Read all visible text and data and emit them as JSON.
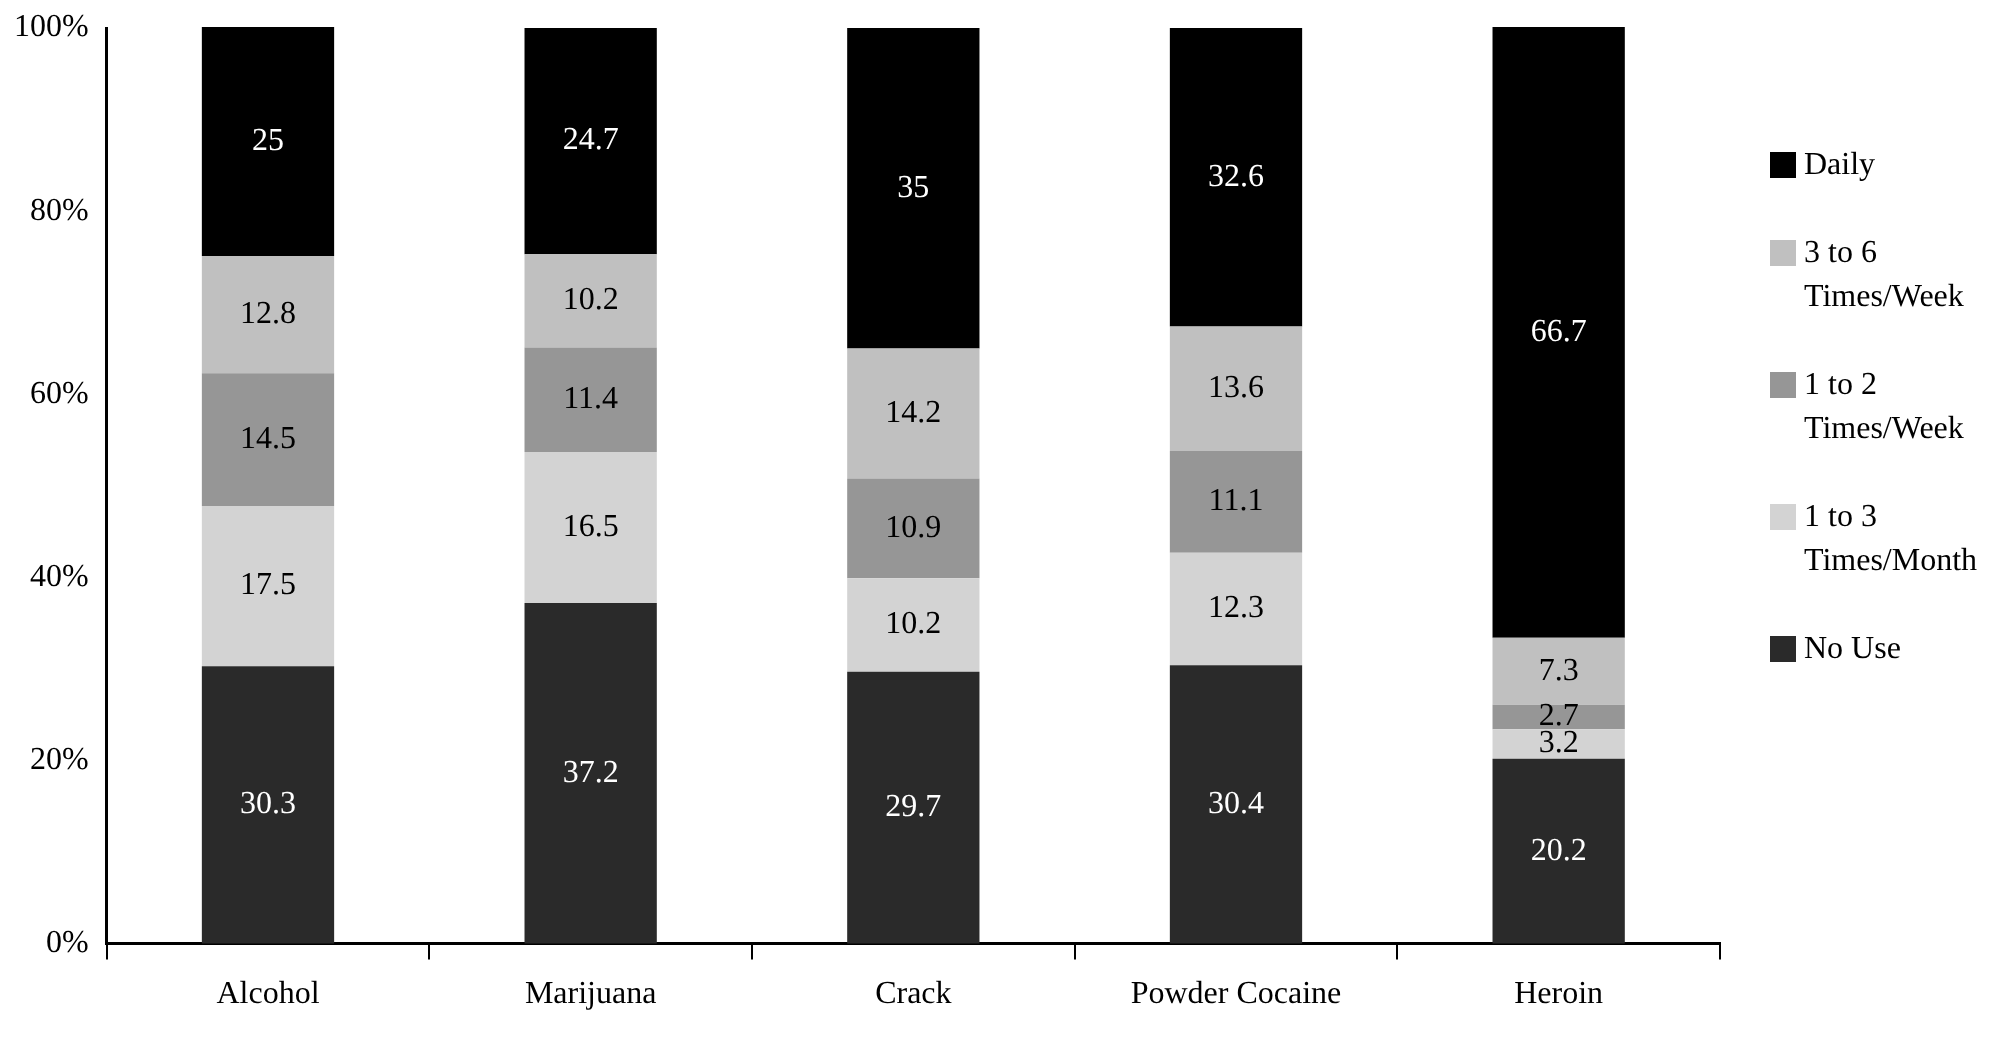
{
  "chart_data": {
    "type": "bar",
    "stacked": true,
    "categories": [
      "Alcohol",
      "Marijuana",
      "Crack",
      "Powder Cocaine",
      "Heroin"
    ],
    "series": [
      {
        "name": "No Use",
        "color": "#2a2a2a",
        "values": [
          30.3,
          37.2,
          29.7,
          30.4,
          20.2
        ]
      },
      {
        "name": "1 to 3 Times/Month",
        "color": "#d3d3d3",
        "values": [
          17.5,
          16.5,
          10.2,
          12.3,
          3.2
        ]
      },
      {
        "name": "1 to 2 Times/Week",
        "color": "#969696",
        "values": [
          14.5,
          11.4,
          10.9,
          11.1,
          2.7
        ]
      },
      {
        "name": "3 to 6 Times/Week",
        "color": "#c0c0c0",
        "values": [
          12.8,
          10.2,
          14.2,
          13.6,
          7.3
        ]
      },
      {
        "name": "Daily",
        "color": "#000000",
        "values": [
          25,
          24.7,
          35,
          32.6,
          66.7
        ]
      }
    ],
    "ylim": [
      0,
      100
    ],
    "yticks": [
      {
        "value": 0,
        "label": "0%"
      },
      {
        "value": 20,
        "label": "20%"
      },
      {
        "value": 40,
        "label": "40%"
      },
      {
        "value": 60,
        "label": "60%"
      },
      {
        "value": 80,
        "label": "80%"
      },
      {
        "value": 100,
        "label": "100%"
      }
    ],
    "grid": false,
    "legend": "right",
    "data_labels": true
  }
}
